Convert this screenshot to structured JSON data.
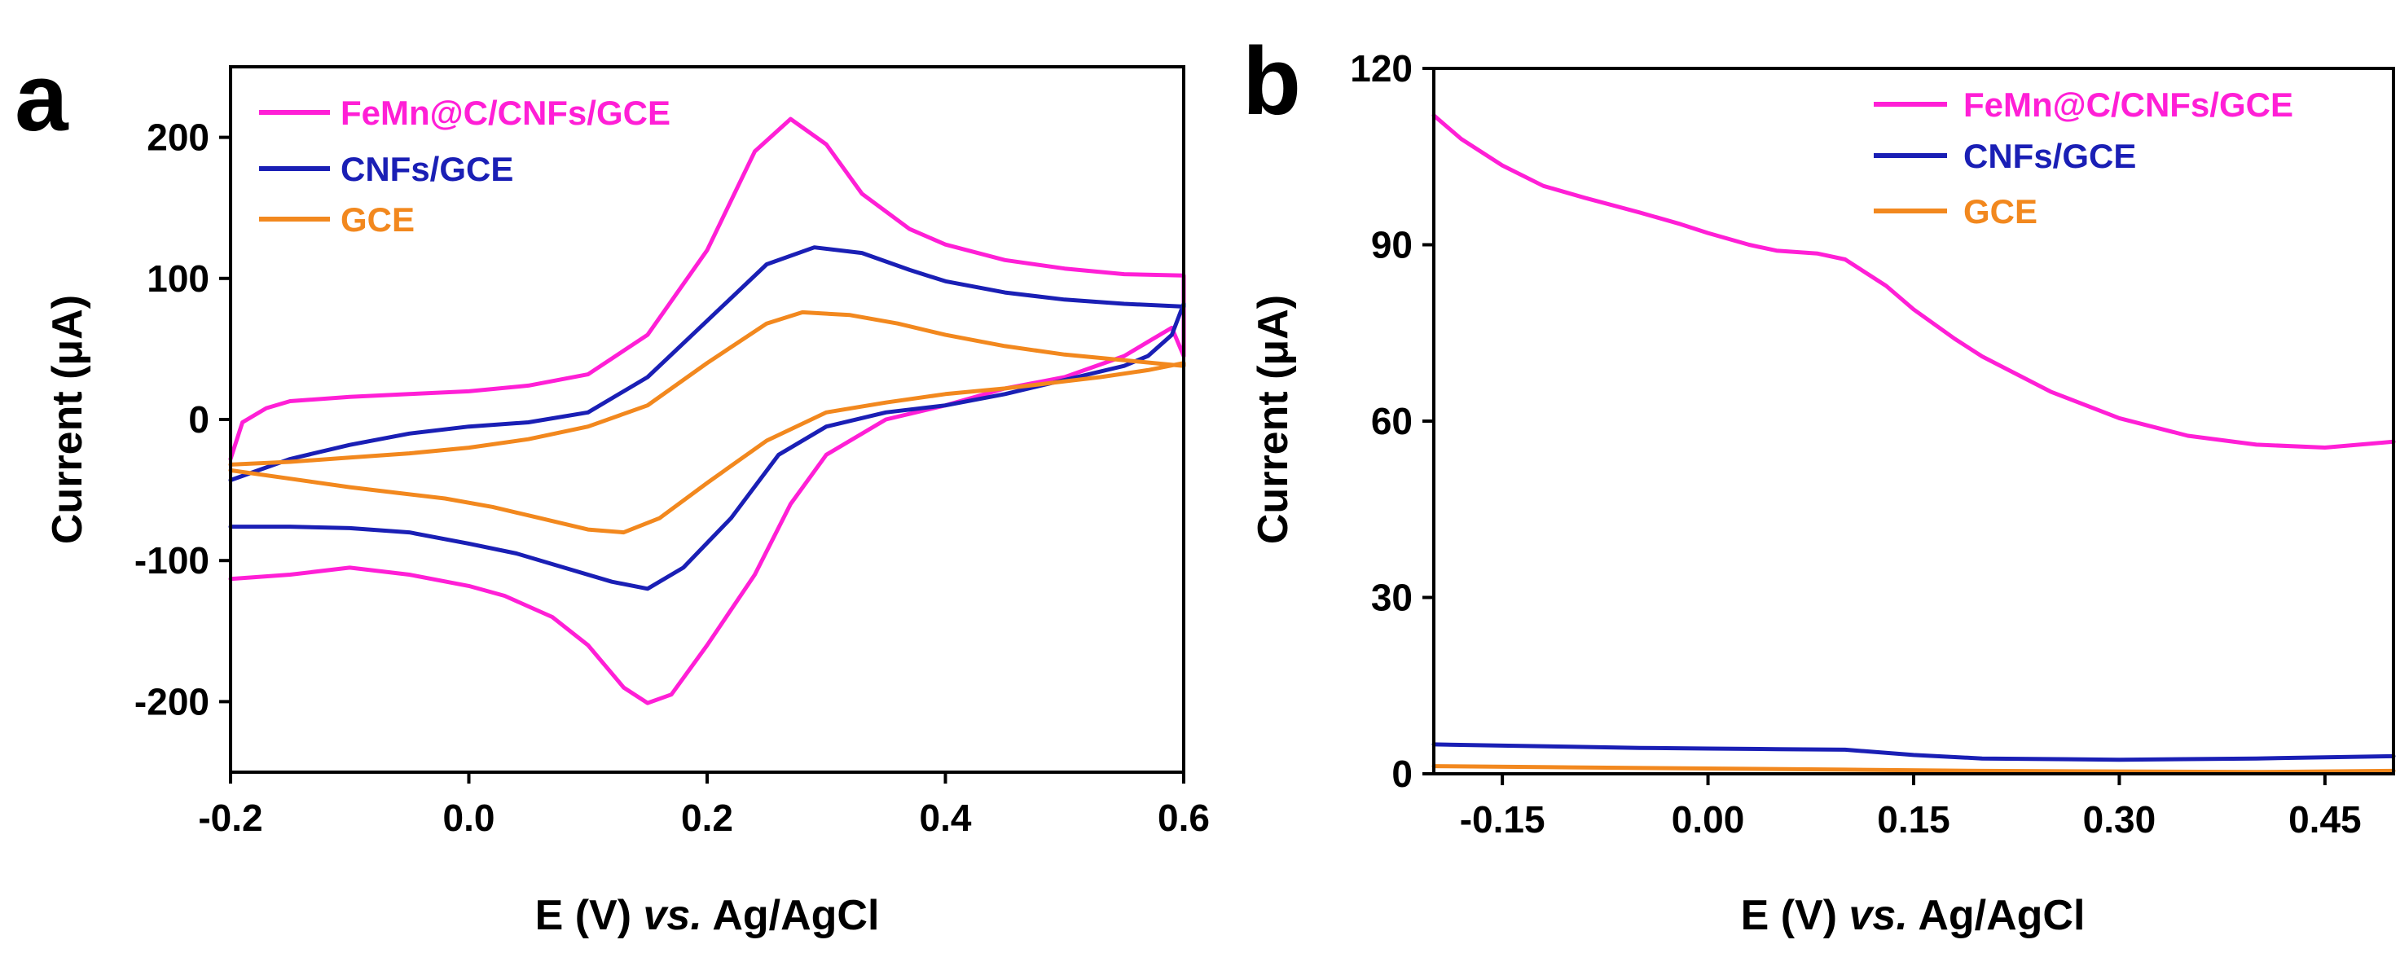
{
  "chart_data": [
    {
      "panel": "a",
      "type": "line",
      "title": "",
      "xlabel": "E (V) vs. Ag/AgCl",
      "xlabel_parts": {
        "pre": "E (V) ",
        "italic": "vs.",
        "post": " Ag/AgCl"
      },
      "ylabel": "Current (μA)",
      "xlim": [
        -0.2,
        0.6
      ],
      "ylim": [
        -250,
        250
      ],
      "xticks": [
        -0.2,
        0.0,
        0.2,
        0.4,
        0.6
      ],
      "xtick_labels": [
        "-0.2",
        "0.0",
        "0.2",
        "0.4",
        "0.6"
      ],
      "yticks": [
        -200,
        -100,
        0,
        100,
        200
      ],
      "ytick_labels": [
        "-200",
        "-100",
        "0",
        "100",
        "200"
      ],
      "legend_position": "top-left",
      "series": [
        {
          "name": "FeMn@C/CNFs/GCE",
          "color": "#ff1fd6",
          "points": [
            [
              -0.2,
              -28
            ],
            [
              -0.19,
              -2
            ],
            [
              -0.17,
              8
            ],
            [
              -0.15,
              13
            ],
            [
              -0.1,
              16
            ],
            [
              -0.05,
              18
            ],
            [
              0.0,
              20
            ],
            [
              0.05,
              24
            ],
            [
              0.1,
              32
            ],
            [
              0.15,
              60
            ],
            [
              0.2,
              120
            ],
            [
              0.24,
              190
            ],
            [
              0.27,
              213
            ],
            [
              0.3,
              195
            ],
            [
              0.33,
              160
            ],
            [
              0.37,
              135
            ],
            [
              0.4,
              124
            ],
            [
              0.45,
              113
            ],
            [
              0.5,
              107
            ],
            [
              0.55,
              103
            ],
            [
              0.6,
              102
            ],
            [
              0.6,
              45
            ],
            [
              0.59,
              65
            ],
            [
              0.57,
              55
            ],
            [
              0.55,
              45
            ],
            [
              0.5,
              30
            ],
            [
              0.45,
              22
            ],
            [
              0.4,
              10
            ],
            [
              0.35,
              0
            ],
            [
              0.3,
              -25
            ],
            [
              0.27,
              -60
            ],
            [
              0.24,
              -110
            ],
            [
              0.2,
              -160
            ],
            [
              0.17,
              -195
            ],
            [
              0.15,
              -201
            ],
            [
              0.13,
              -190
            ],
            [
              0.1,
              -160
            ],
            [
              0.07,
              -140
            ],
            [
              0.03,
              -125
            ],
            [
              0.0,
              -118
            ],
            [
              -0.05,
              -110
            ],
            [
              -0.1,
              -105
            ],
            [
              -0.15,
              -110
            ],
            [
              -0.2,
              -113
            ]
          ]
        },
        {
          "name": "CNFs/GCE",
          "color": "#1a1fb5",
          "points": [
            [
              -0.2,
              -43
            ],
            [
              -0.15,
              -28
            ],
            [
              -0.1,
              -18
            ],
            [
              -0.05,
              -10
            ],
            [
              0.0,
              -5
            ],
            [
              0.05,
              -2
            ],
            [
              0.1,
              5
            ],
            [
              0.15,
              30
            ],
            [
              0.2,
              70
            ],
            [
              0.25,
              110
            ],
            [
              0.29,
              122
            ],
            [
              0.33,
              118
            ],
            [
              0.37,
              106
            ],
            [
              0.4,
              98
            ],
            [
              0.45,
              90
            ],
            [
              0.5,
              85
            ],
            [
              0.55,
              82
            ],
            [
              0.6,
              80
            ],
            [
              0.6,
              82
            ],
            [
              0.59,
              60
            ],
            [
              0.57,
              45
            ],
            [
              0.55,
              38
            ],
            [
              0.5,
              28
            ],
            [
              0.45,
              18
            ],
            [
              0.4,
              10
            ],
            [
              0.35,
              5
            ],
            [
              0.3,
              -5
            ],
            [
              0.26,
              -25
            ],
            [
              0.22,
              -70
            ],
            [
              0.18,
              -105
            ],
            [
              0.15,
              -120
            ],
            [
              0.12,
              -115
            ],
            [
              0.08,
              -105
            ],
            [
              0.04,
              -95
            ],
            [
              0.0,
              -88
            ],
            [
              -0.05,
              -80
            ],
            [
              -0.1,
              -77
            ],
            [
              -0.15,
              -76
            ],
            [
              -0.2,
              -76
            ]
          ]
        },
        {
          "name": "GCE",
          "color": "#f2881e",
          "points": [
            [
              -0.2,
              -32
            ],
            [
              -0.15,
              -30
            ],
            [
              -0.1,
              -27
            ],
            [
              -0.05,
              -24
            ],
            [
              0.0,
              -20
            ],
            [
              0.05,
              -14
            ],
            [
              0.1,
              -5
            ],
            [
              0.15,
              10
            ],
            [
              0.2,
              40
            ],
            [
              0.25,
              68
            ],
            [
              0.28,
              76
            ],
            [
              0.32,
              74
            ],
            [
              0.36,
              68
            ],
            [
              0.4,
              60
            ],
            [
              0.45,
              52
            ],
            [
              0.5,
              46
            ],
            [
              0.55,
              42
            ],
            [
              0.6,
              38
            ],
            [
              0.6,
              40
            ],
            [
              0.57,
              35
            ],
            [
              0.53,
              30
            ],
            [
              0.5,
              27
            ],
            [
              0.45,
              22
            ],
            [
              0.4,
              18
            ],
            [
              0.35,
              12
            ],
            [
              0.3,
              5
            ],
            [
              0.25,
              -15
            ],
            [
              0.2,
              -45
            ],
            [
              0.16,
              -70
            ],
            [
              0.13,
              -80
            ],
            [
              0.1,
              -78
            ],
            [
              0.06,
              -70
            ],
            [
              0.02,
              -62
            ],
            [
              -0.02,
              -56
            ],
            [
              -0.06,
              -52
            ],
            [
              -0.1,
              -48
            ],
            [
              -0.15,
              -42
            ],
            [
              -0.2,
              -36
            ]
          ]
        }
      ]
    },
    {
      "panel": "b",
      "type": "line",
      "title": "",
      "xlabel": "E (V) vs. Ag/AgCl",
      "xlabel_parts": {
        "pre": "E (V) ",
        "italic": "vs.",
        "post": " Ag/AgCl"
      },
      "ylabel": "Current (μA)",
      "xlim": [
        -0.2,
        0.5
      ],
      "ylim": [
        0,
        120
      ],
      "xticks": [
        -0.15,
        0.0,
        0.15,
        0.3,
        0.45
      ],
      "xtick_labels": [
        "-0.15",
        "0.00",
        "0.15",
        "0.30",
        "0.45"
      ],
      "yticks": [
        0,
        30,
        60,
        90,
        120
      ],
      "ytick_labels": [
        "0",
        "30",
        "60",
        "90",
        "120"
      ],
      "legend_position": "top-right",
      "series": [
        {
          "name": "FeMn@C/CNFs/GCE",
          "color": "#ff1fd6",
          "points": [
            [
              -0.2,
              112
            ],
            [
              -0.18,
              108
            ],
            [
              -0.15,
              103.5
            ],
            [
              -0.12,
              100
            ],
            [
              -0.09,
              98
            ],
            [
              -0.05,
              95.5
            ],
            [
              -0.02,
              93.5
            ],
            [
              0.0,
              92
            ],
            [
              0.03,
              90
            ],
            [
              0.05,
              89
            ],
            [
              0.08,
              88.5
            ],
            [
              0.1,
              87.5
            ],
            [
              0.13,
              83
            ],
            [
              0.15,
              79
            ],
            [
              0.18,
              74
            ],
            [
              0.2,
              71
            ],
            [
              0.25,
              65
            ],
            [
              0.3,
              60.5
            ],
            [
              0.35,
              57.5
            ],
            [
              0.4,
              56
            ],
            [
              0.45,
              55.5
            ],
            [
              0.5,
              56.5
            ]
          ]
        },
        {
          "name": "CNFs/GCE",
          "color": "#1a1fb5",
          "points": [
            [
              -0.2,
              5
            ],
            [
              -0.15,
              4.8
            ],
            [
              -0.1,
              4.6
            ],
            [
              -0.05,
              4.4
            ],
            [
              0.0,
              4.3
            ],
            [
              0.05,
              4.2
            ],
            [
              0.1,
              4.1
            ],
            [
              0.15,
              3.2
            ],
            [
              0.2,
              2.6
            ],
            [
              0.3,
              2.4
            ],
            [
              0.4,
              2.6
            ],
            [
              0.5,
              3.0
            ]
          ]
        },
        {
          "name": "GCE",
          "color": "#f2881e",
          "points": [
            [
              -0.2,
              1.3
            ],
            [
              -0.1,
              1.1
            ],
            [
              0.0,
              0.9
            ],
            [
              0.1,
              0.7
            ],
            [
              0.2,
              0.5
            ],
            [
              0.3,
              0.4
            ],
            [
              0.4,
              0.3
            ],
            [
              0.5,
              0.5
            ]
          ]
        }
      ]
    }
  ]
}
